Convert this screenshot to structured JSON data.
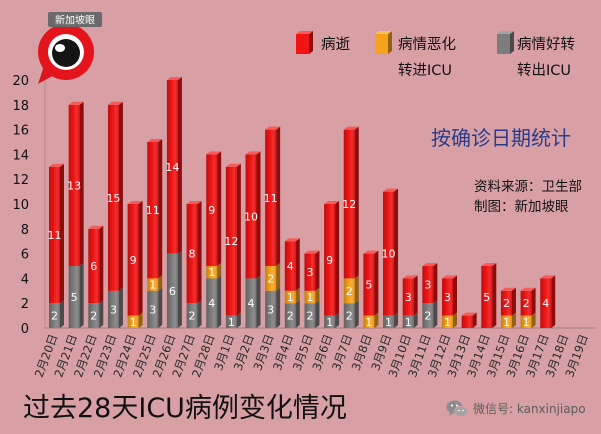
{
  "logo": {
    "text": "新加坡眼",
    "icon": "eye-logo-icon"
  },
  "source": {
    "line1": "资料来源：卫生部",
    "line2": "制图：新加坡眼"
  },
  "watermark": {
    "icon": "wechat-icon",
    "text": "微信号: kanxinjiapo"
  },
  "chart_data": {
    "type": "bar",
    "stacked": true,
    "bar_style": "3d",
    "title": "过去28天ICU病例变化情况",
    "subtitle": "按确诊日期统计",
    "categories": [
      "2月20日",
      "2月21日",
      "2月22日",
      "2月23日",
      "2月24日",
      "2月25日",
      "2月26日",
      "2月27日",
      "2月28日",
      "3月1日",
      "3月2日",
      "3月3日",
      "3月4日",
      "3月5日",
      "3月6日",
      "3月7日",
      "3月8日",
      "3月9日",
      "3月10日",
      "3月11日",
      "3月12日",
      "3月13日",
      "3月14日",
      "3月15日",
      "3月16日",
      "3月17日",
      "3月18日",
      "3月19日"
    ],
    "ylim": [
      0,
      20
    ],
    "y_ticks": [
      0,
      2,
      4,
      6,
      8,
      10,
      12,
      14,
      16,
      18,
      20
    ],
    "grid": false,
    "legend_position": "top-right",
    "series": [
      {
        "name_lines": [
          "病逝"
        ],
        "color": "#f01414",
        "values": [
          11,
          13,
          6,
          15,
          9,
          11,
          14,
          8,
          9,
          12,
          10,
          11,
          4,
          3,
          9,
          12,
          5,
          10,
          3,
          3,
          3,
          1,
          5,
          2,
          2,
          4,
          0,
          0
        ],
        "data_labels": [
          "11",
          "13",
          "6",
          "15",
          "9",
          "11",
          "14",
          "8",
          "9",
          "12",
          "10",
          "11",
          "4",
          "3",
          "9",
          "12",
          "5",
          "10",
          "3",
          "3",
          "3",
          null,
          "5",
          "2",
          "2",
          "4",
          null,
          null
        ]
      },
      {
        "name_lines": [
          "病情恶化",
          "转进ICU"
        ],
        "color": "#f7a21b",
        "values": [
          0,
          0,
          0,
          0,
          1,
          1,
          0,
          0,
          1,
          0,
          0,
          2,
          1,
          1,
          0,
          2,
          1,
          0,
          0,
          0,
          1,
          0,
          0,
          1,
          1,
          0,
          0,
          0
        ],
        "data_labels": [
          null,
          null,
          null,
          null,
          "1",
          "1",
          null,
          null,
          "1",
          null,
          null,
          "2",
          "1",
          "1",
          null,
          "2",
          "1",
          null,
          null,
          null,
          "1",
          null,
          null,
          "1",
          "1",
          null,
          null,
          null
        ]
      },
      {
        "name_lines": [
          "病情好转",
          "转出ICU"
        ],
        "color": "#7d7d7d",
        "values": [
          2,
          5,
          2,
          3,
          0,
          3,
          6,
          2,
          4,
          1,
          4,
          3,
          2,
          2,
          1,
          2,
          0,
          1,
          1,
          2,
          0,
          0,
          0,
          0,
          0,
          0,
          0,
          0
        ],
        "data_labels": [
          "2",
          "5",
          "2",
          "3",
          null,
          "3",
          "6",
          "2",
          "4",
          "1",
          "4",
          "3",
          "2",
          "2",
          "1",
          "2",
          null,
          "1",
          "1",
          "2",
          null,
          null,
          null,
          null,
          null,
          null,
          null,
          null
        ]
      }
    ]
  }
}
